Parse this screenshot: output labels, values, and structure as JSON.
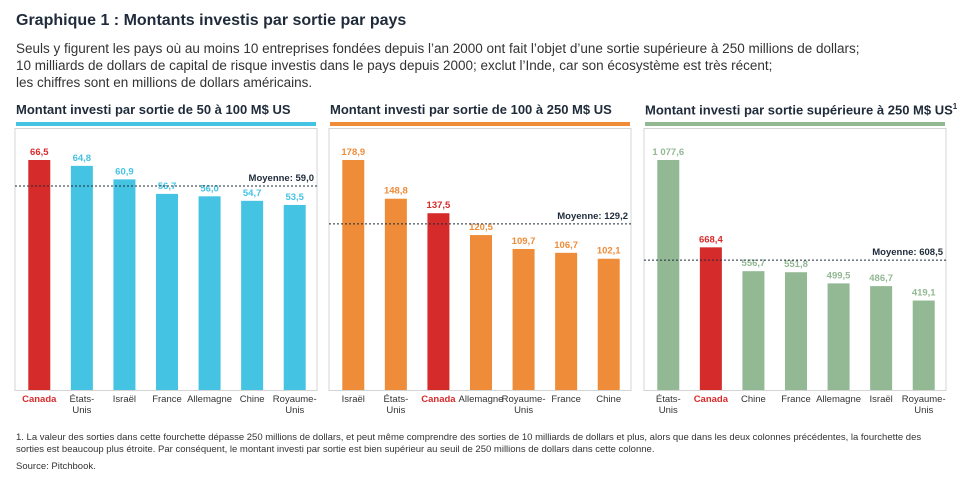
{
  "header": {
    "title": "Graphique 1 : Montants investis par sortie par pays",
    "subtitle_lines": [
      "Seuls y figurent les pays où au moins 10 entreprises fondées depuis l’an 2000 ont fait l’objet d’une sortie supérieure à 250 millions de dollars;",
      "10 milliards de dollars de capital de risque investis dans le pays depuis 2000; exclut l’Inde, car son écosystème est très récent;",
      "les chiffres sont en millions de dollars américains."
    ]
  },
  "colors": {
    "canada": "#d62b2b",
    "panel1": "#45c3e3",
    "panel2": "#ef8c39",
    "panel3": "#93b894",
    "text": "#1f2b3a"
  },
  "chart_data": [
    {
      "type": "bar",
      "title": "Montant investi par sortie de 50 à 100 M$ US",
      "title_sup": "",
      "categories": [
        "Canada",
        "États-Unis",
        "Israël",
        "France",
        "Allemagne",
        "Chine",
        "Royaume-Unis"
      ],
      "values": [
        66.5,
        64.8,
        60.9,
        56.7,
        56.0,
        54.7,
        53.5
      ],
      "value_labels": [
        "66,5",
        "64,8",
        "60,9",
        "56,7",
        "56,0",
        "54,7",
        "53,5"
      ],
      "average": 59.0,
      "average_label": "Moyenne: 59,0",
      "ylim": [
        0,
        66.5
      ],
      "highlight": "Canada"
    },
    {
      "type": "bar",
      "title": "Montant investi par sortie de 100 à 250 M$ US",
      "title_sup": "",
      "categories": [
        "Israël",
        "États-Unis",
        "Canada",
        "Allemagne",
        "Royaume-Unis",
        "France",
        "Chine"
      ],
      "values": [
        178.9,
        148.8,
        137.5,
        120.5,
        109.7,
        106.7,
        102.1
      ],
      "value_labels": [
        "178,9",
        "148,8",
        "137,5",
        "120,5",
        "109,7",
        "106,7",
        "102,1"
      ],
      "average": 129.2,
      "average_label": "Moyenne: 129,2",
      "ylim": [
        0,
        178.9
      ],
      "highlight": "Canada"
    },
    {
      "type": "bar",
      "title": "Montant investi par sortie supérieure à 250 M$ US",
      "title_sup": "1",
      "categories": [
        "États-Unis",
        "Canada",
        "Chine",
        "France",
        "Allemagne",
        "Israël",
        "Royaume-Unis"
      ],
      "values": [
        1077.6,
        668.4,
        556.7,
        551.8,
        499.5,
        486.7,
        419.1
      ],
      "value_labels": [
        "1 077,6",
        "668,4",
        "556,7",
        "551,8",
        "499,5",
        "486,7",
        "419,1"
      ],
      "average": 608.5,
      "average_label": "Moyenne: 608,5",
      "ylim": [
        0,
        1077.6
      ],
      "highlight": "Canada"
    }
  ],
  "footnote": "1. La valeur des sorties dans cette fourchette dépasse 250 millions de dollars, et peut même comprendre des sorties de 10 milliards de dollars et plus, alors que dans les deux colonnes précédentes, la fourchette des sorties est beaucoup plus étroite. Par conséquent, le montant investi par sortie est bien supérieur au seuil de 250 millions de dollars dans cette colonne.",
  "source": "Source: Pitchbook."
}
